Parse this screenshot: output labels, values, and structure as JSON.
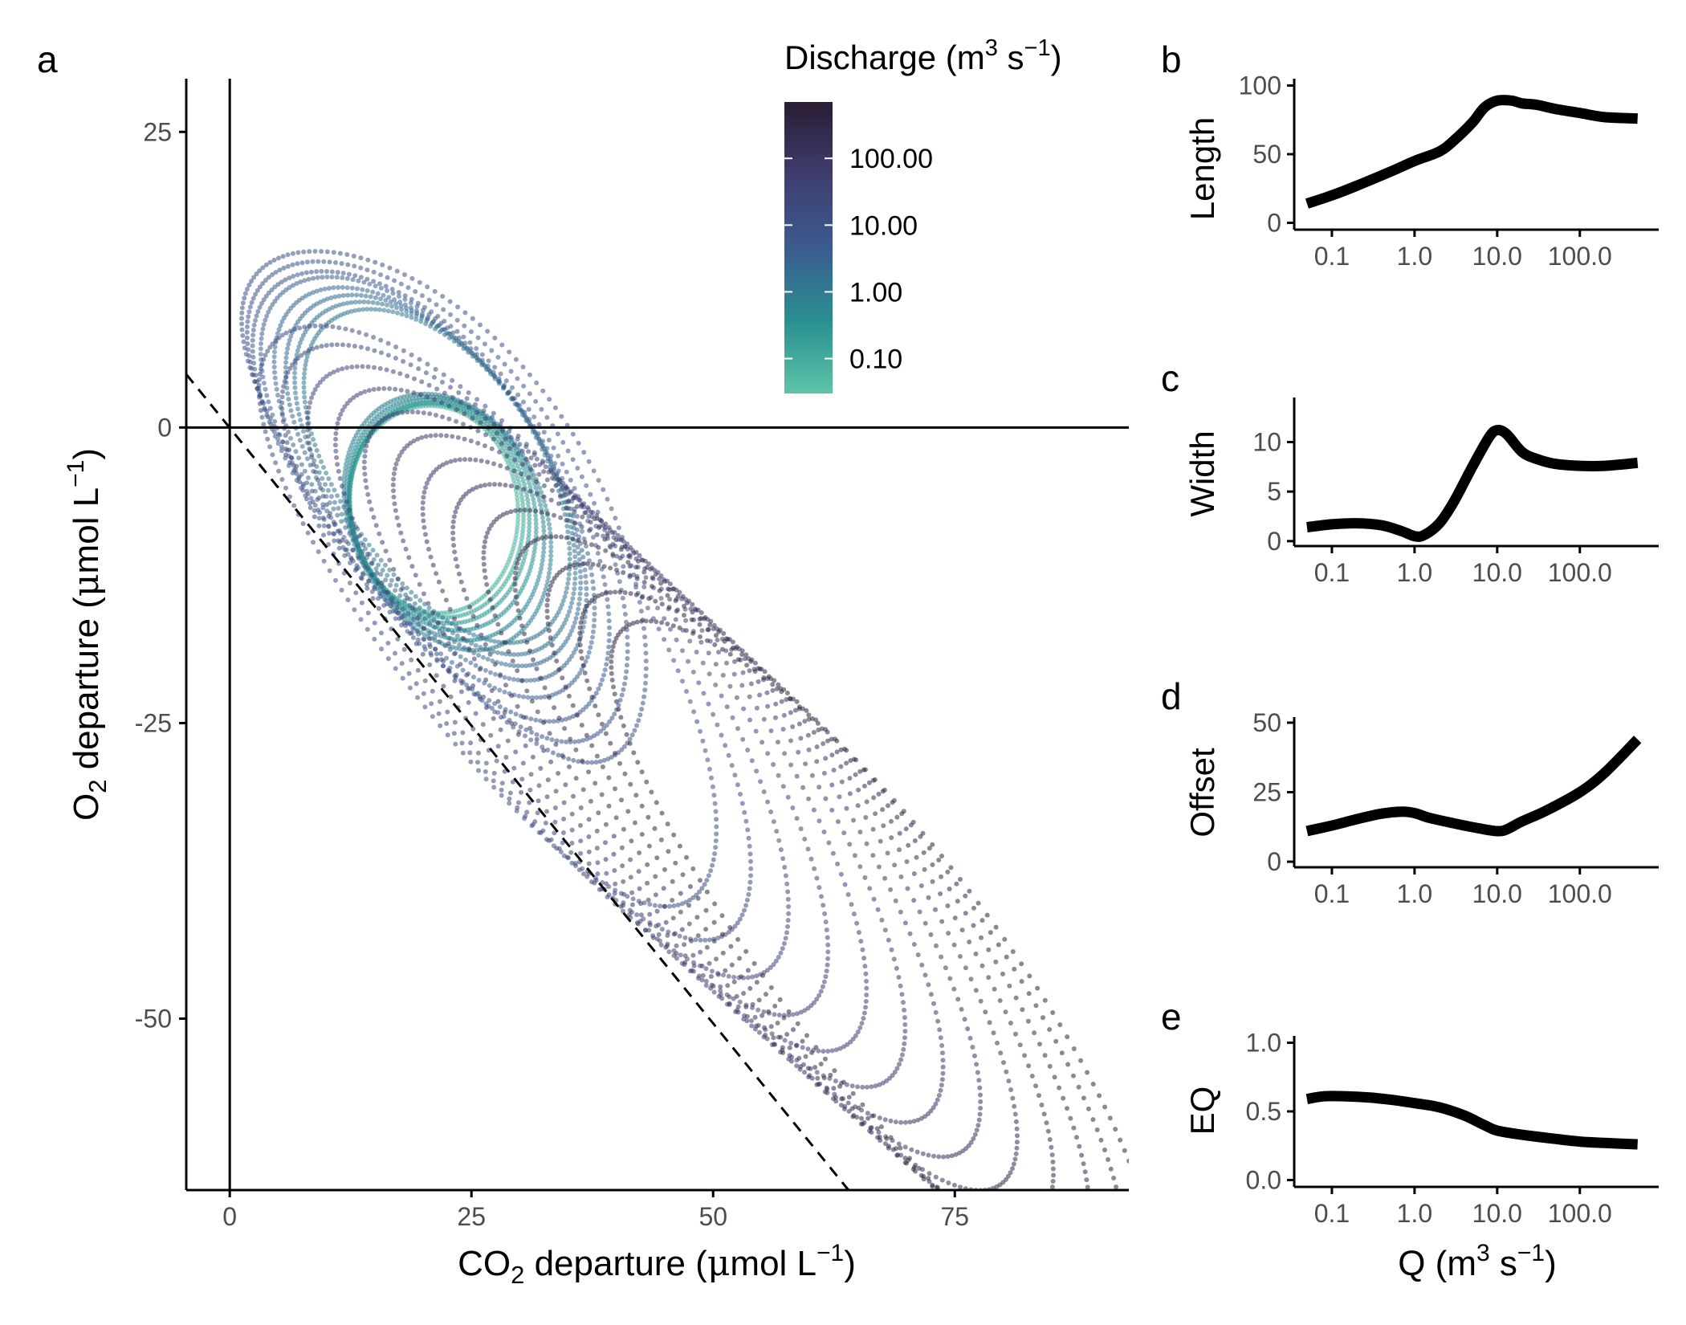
{
  "chart_data": [
    {
      "panel": "a",
      "type": "scatter",
      "xlabel": "CO2 departure (μmol L−1)",
      "ylabel": "O2 departure (μmol L−1)",
      "xlim": [
        -4.5,
        93
      ],
      "ylim": [
        -64.5,
        29.5
      ],
      "x_ticks": [
        0,
        25,
        50,
        75
      ],
      "y_ticks": [
        25,
        0,
        -25,
        -50
      ],
      "reference_lines": {
        "vertical": 0,
        "horizontal": 0,
        "dashed_line": {
          "x": [
            -4.5,
            64
          ],
          "y": [
            4.5,
            -64.5
          ]
        }
      },
      "legend": {
        "title": "Discharge (m3 s−1)",
        "position": "top-right",
        "type": "colorbar",
        "ticks": [
          "100.00",
          "10.00",
          "1.00",
          "0.10"
        ],
        "tick_values": [
          100,
          10,
          1,
          0.1
        ],
        "colors": [
          "#5ec4a8",
          "#2a8f91",
          "#3b5b8f",
          "#3f3d6e",
          "#2a1d33"
        ]
      },
      "loops": [
        {
          "q": 0.06,
          "cx": 21,
          "cy": -7,
          "a": 9,
          "b": 8.5,
          "bulge": 0.18
        },
        {
          "q": 0.1,
          "cx": 21.3,
          "cy": -7.1,
          "a": 9.4,
          "b": 8.6,
          "bulge": 0.2
        },
        {
          "q": 0.18,
          "cx": 21.6,
          "cy": -7.3,
          "a": 9.8,
          "b": 8.8,
          "bulge": 0.22
        },
        {
          "q": 0.3,
          "cx": 21.9,
          "cy": -7.5,
          "a": 10.4,
          "b": 9,
          "bulge": 0.24
        },
        {
          "q": 0.5,
          "cx": 22.2,
          "cy": -7.8,
          "a": 11.2,
          "b": 9.2,
          "bulge": 0.26
        },
        {
          "q": 0.8,
          "cx": 22.4,
          "cy": -8.1,
          "a": 12,
          "b": 9.4,
          "bulge": 0.28
        },
        {
          "q": 1.2,
          "cx": 21.3,
          "cy": -4.2,
          "a": 17.2,
          "b": 9.6,
          "bulge": 0.45
        },
        {
          "q": 1.6,
          "cx": 21.1,
          "cy": -4.4,
          "a": 18.3,
          "b": 9.9,
          "bulge": 0.5
        },
        {
          "q": 2.2,
          "cx": 20.9,
          "cy": -4.6,
          "a": 19.4,
          "b": 10.1,
          "bulge": 0.55
        },
        {
          "q": 3,
          "cx": 20.6,
          "cy": -4.9,
          "a": 20.7,
          "b": 10.4,
          "bulge": 0.6
        },
        {
          "q": 4.2,
          "cx": 20.3,
          "cy": -5.2,
          "a": 22.3,
          "b": 10.8,
          "bulge": 0.7
        },
        {
          "q": 6,
          "cx": 20.6,
          "cy": -6,
          "a": 24,
          "b": 11.2,
          "bulge": 0.9
        },
        {
          "q": 8,
          "cx": 21.2,
          "cy": -6.5,
          "a": 25.8,
          "b": 11.5,
          "bulge": 1.2
        },
        {
          "q": 11,
          "cx": 21.8,
          "cy": -7,
          "a": 27.6,
          "b": 11.8,
          "bulge": 1.6
        },
        {
          "q": 15,
          "cx": 26.5,
          "cy": -16.1,
          "a": 32,
          "b": 11.7,
          "bulge": 1.1
        },
        {
          "q": 20,
          "cx": 29.5,
          "cy": -18.3,
          "a": 33,
          "b": 11.5,
          "bulge": 1
        },
        {
          "q": 28,
          "cx": 32.8,
          "cy": -20.8,
          "a": 34,
          "b": 11.4,
          "bulge": 0.95
        },
        {
          "q": 38,
          "cx": 36.3,
          "cy": -23.3,
          "a": 35,
          "b": 11.2,
          "bulge": 0.9
        },
        {
          "q": 52,
          "cx": 39.8,
          "cy": -25.8,
          "a": 35.8,
          "b": 11.1,
          "bulge": 0.85
        },
        {
          "q": 70,
          "cx": 43.3,
          "cy": -28.3,
          "a": 36.6,
          "b": 11,
          "bulge": 0.8
        },
        {
          "q": 95,
          "cx": 46.8,
          "cy": -30.8,
          "a": 37.3,
          "b": 10.9,
          "bulge": 0.75
        },
        {
          "q": 130,
          "cx": 50.3,
          "cy": -33.3,
          "a": 37.9,
          "b": 10.8,
          "bulge": 0.7
        },
        {
          "q": 170,
          "cx": 53.8,
          "cy": -35.8,
          "a": 38.4,
          "b": 10.7,
          "bulge": 0.65
        },
        {
          "q": 230,
          "cx": 57.3,
          "cy": -38.3,
          "a": 38.8,
          "b": 10.6,
          "bulge": 0.6
        },
        {
          "q": 300,
          "cx": 60.8,
          "cy": -40.8,
          "a": 39.1,
          "b": 10.5,
          "bulge": 0.55
        },
        {
          "q": 380,
          "cx": 64.3,
          "cy": -43.3,
          "a": 39.3,
          "b": 10.4,
          "bulge": 0.5
        },
        {
          "q": 430,
          "cx": 67.6,
          "cy": -45.8,
          "a": 39.4,
          "b": 10.3,
          "bulge": 0.45
        }
      ]
    },
    {
      "panel": "b",
      "type": "line",
      "xlabel": "",
      "ylabel": "Length",
      "x_scale": "log10",
      "xlim": [
        0.035,
        900
      ],
      "ylim": [
        -5,
        105
      ],
      "x_ticks": [
        "0.1",
        "1.0",
        "10.0",
        "100.0"
      ],
      "y_ticks": [
        0,
        50,
        100
      ],
      "x": [
        0.05,
        0.1,
        0.2,
        0.5,
        1,
        2,
        3,
        5,
        7,
        10,
        15,
        20,
        30,
        50,
        100,
        200,
        500
      ],
      "y": [
        14,
        20,
        27,
        37,
        45,
        52,
        60,
        73,
        84,
        89,
        89,
        87,
        86,
        83,
        80,
        77,
        76
      ]
    },
    {
      "panel": "c",
      "type": "line",
      "xlabel": "",
      "ylabel": "Width",
      "x_scale": "log10",
      "xlim": [
        0.035,
        900
      ],
      "ylim": [
        -0.5,
        14.5
      ],
      "x_ticks": [
        "0.1",
        "1.0",
        "10.0",
        "100.0"
      ],
      "y_ticks": [
        0,
        5,
        10
      ],
      "x": [
        0.05,
        0.1,
        0.2,
        0.4,
        0.7,
        1,
        1.3,
        2,
        3,
        5,
        8,
        10,
        13,
        20,
        30,
        50,
        100,
        200,
        500
      ],
      "y": [
        1.4,
        1.7,
        1.8,
        1.6,
        1,
        0.5,
        0.6,
        1.8,
        4,
        7.5,
        10.5,
        11.2,
        10.8,
        9,
        8.3,
        7.8,
        7.6,
        7.6,
        7.9
      ]
    },
    {
      "panel": "d",
      "type": "line",
      "xlabel": "",
      "ylabel": "Offset",
      "x_scale": "log10",
      "xlim": [
        0.035,
        900
      ],
      "ylim": [
        -2,
        52
      ],
      "x_ticks": [
        "0.1",
        "1.0",
        "10.0",
        "100.0"
      ],
      "y_ticks": [
        0,
        25,
        50
      ],
      "x": [
        0.05,
        0.1,
        0.2,
        0.4,
        0.7,
        1,
        1.5,
        3,
        6,
        10,
        13,
        20,
        40,
        100,
        200,
        500
      ],
      "y": [
        11,
        13,
        15.3,
        17.3,
        18,
        17.5,
        15.8,
        13.8,
        12,
        11,
        11.6,
        14.5,
        18.5,
        25,
        32,
        44
      ]
    },
    {
      "panel": "e",
      "type": "line",
      "xlabel": "Q (m3 s−1)",
      "ylabel": "EQ",
      "x_scale": "log10",
      "xlim": [
        0.035,
        900
      ],
      "ylim": [
        -0.05,
        1.05
      ],
      "x_ticks": [
        "0.1",
        "1.0",
        "10.0",
        "100.0"
      ],
      "y_ticks": [
        "0.0",
        "0.5",
        "1.0"
      ],
      "x": [
        0.05,
        0.08,
        0.15,
        0.3,
        0.6,
        1,
        2,
        4,
        7,
        10,
        20,
        50,
        100,
        200,
        500
      ],
      "y": [
        0.59,
        0.61,
        0.61,
        0.6,
        0.58,
        0.56,
        0.53,
        0.47,
        0.4,
        0.36,
        0.33,
        0.3,
        0.28,
        0.27,
        0.26
      ]
    }
  ],
  "panel_labels": {
    "a": "a",
    "b": "b",
    "c": "c",
    "d": "d",
    "e": "e"
  },
  "axis_titles": {
    "a_x": {
      "pre": "CO",
      "sub": "2",
      "mid": " departure (",
      "mu": "μ",
      "post": "mol L",
      "sup": "−1",
      "end": ")"
    },
    "a_y": {
      "pre": "O",
      "sub": "2",
      "mid": " departure (",
      "mu": "μ",
      "post": "mol L",
      "sup": "−1",
      "end": ")"
    },
    "q": {
      "pre": "Q (m",
      "sup1": "3",
      "mid": " s",
      "sup2": "−1",
      "end": ")"
    },
    "legend": {
      "pre": "Discharge (m",
      "sup1": "3",
      "mid": " s",
      "sup2": "−1",
      "end": ")"
    }
  }
}
